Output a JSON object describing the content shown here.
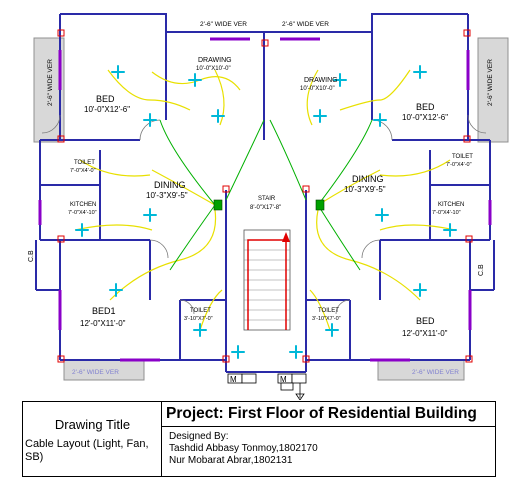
{
  "plan": {
    "rooms": [
      {
        "id": "bed-nw",
        "name": "BED",
        "size": "10'-0\"X12'-6\""
      },
      {
        "id": "bed-ne",
        "name": "BED",
        "size": "10'-0\"X12'-6\""
      },
      {
        "id": "drawing-w",
        "name": "DRAWING",
        "size": "10'-0\"X10'-0\""
      },
      {
        "id": "drawing-e",
        "name": "DRAWING",
        "size": "10'-0\"X10'-0\""
      },
      {
        "id": "dining-w",
        "name": "DINING",
        "size": "10'-3\"X9'-5\""
      },
      {
        "id": "dining-e",
        "name": "DINING",
        "size": "10'-3\"X9'-5\""
      },
      {
        "id": "toilet-w",
        "name": "TOILET",
        "size": "7'-0\"X4'-0\""
      },
      {
        "id": "toilet-e",
        "name": "TOILET",
        "size": "7'-0\"X4'-0\""
      },
      {
        "id": "kitchen-w",
        "name": "KITCHEN",
        "size": "7'-0\"X4'-10\""
      },
      {
        "id": "kitchen-e",
        "name": "KITCHEN",
        "size": "7'-0\"X4'-10\""
      },
      {
        "id": "stair",
        "name": "STAIR",
        "size": "8'-0\"X17'-8\""
      },
      {
        "id": "bed1-sw",
        "name": "BED1",
        "size": "12'-0\"X11'-0\""
      },
      {
        "id": "bed-se",
        "name": "BED",
        "size": "12'-0\"X11'-0\""
      },
      {
        "id": "toilet-sw",
        "name": "TOILET",
        "size": "3'-10\"X7'-0\""
      },
      {
        "id": "toilet-se",
        "name": "TOILET",
        "size": "3'-10\"X7'-0\""
      }
    ],
    "verandas": {
      "top_left": "2'-6\" WIDE VER",
      "top_right": "2'-6\" WIDE VER",
      "left": "2'-6\" WIDE VER",
      "right": "2'-6\" WIDE VER",
      "bottom_left": "2'-6\" WIDE VER",
      "bottom_right": "2'-6\" WIDE VER"
    },
    "cupboard_left": "C.B",
    "cupboard_right": "C.B",
    "meter_left": "M",
    "meter_right": "M",
    "colors": {
      "wall": "#2a2aa8",
      "cable": "#e8e000",
      "cable_alt": "#00b000",
      "fan": "#00b8d8",
      "window": "#8a00c8",
      "stair_arrow": "#e00000",
      "column": "#e00000"
    }
  },
  "title_block": {
    "drawing_title_label": "Drawing Title",
    "drawing_title_value": "Cable Layout (Light, Fan, SB)",
    "project": "Project: First Floor of Residential Building",
    "designed_label": "Designed By:",
    "designer_1": "Tashdid Abbasy Tonmoy,1802170",
    "designer_2": "Nur Mobarat Abrar,1802131"
  }
}
